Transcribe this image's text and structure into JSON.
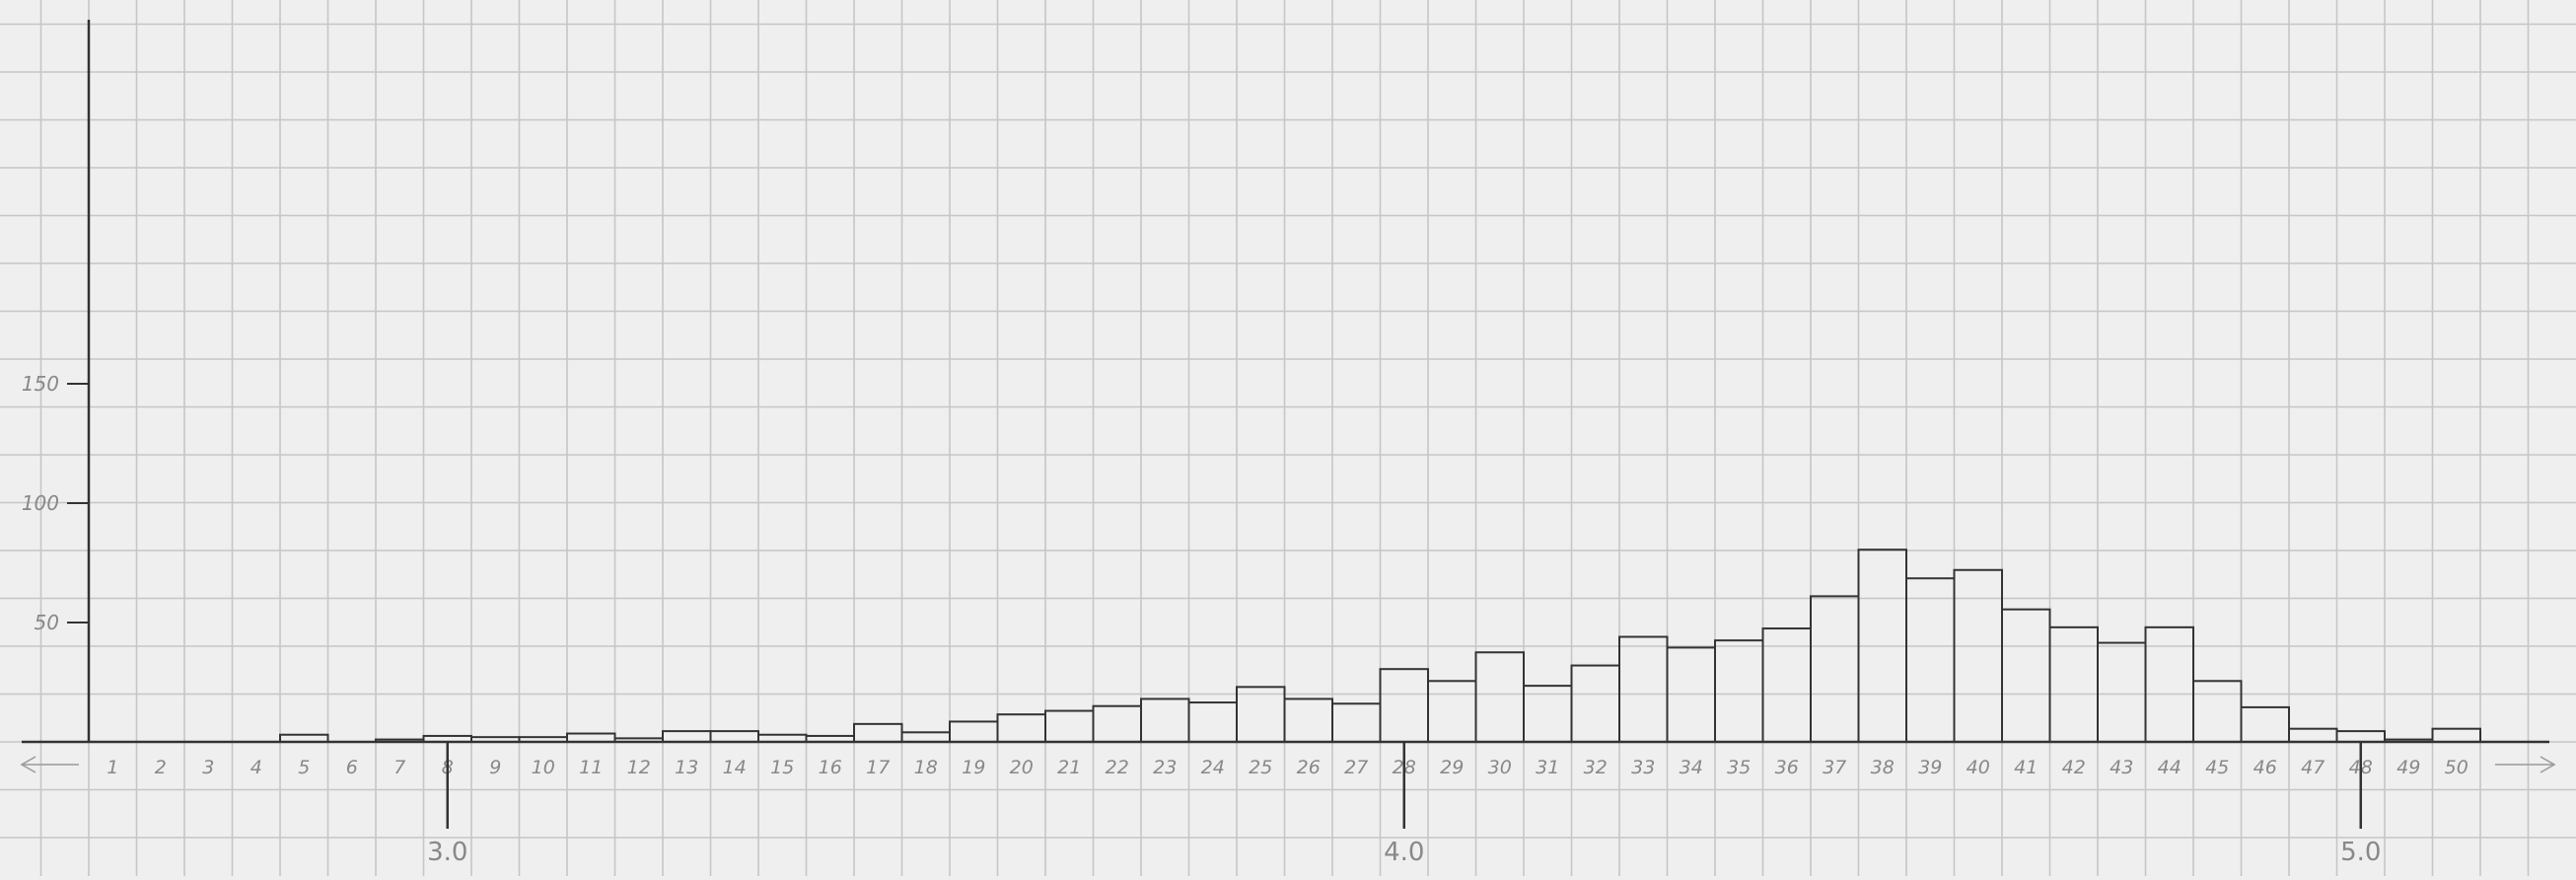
{
  "chart_data": {
    "type": "bar",
    "style": "step histogram, hand-drawn on graph paper",
    "grid": true,
    "xlim": [
      0,
      51
    ],
    "ylim": [
      0,
      150
    ],
    "categories": [
      "1",
      "2",
      "3",
      "4",
      "5",
      "6",
      "7",
      "8",
      "9",
      "10",
      "11",
      "12",
      "13",
      "14",
      "15",
      "16",
      "17",
      "18",
      "19",
      "20",
      "21",
      "22",
      "23",
      "24",
      "25",
      "26",
      "27",
      "28",
      "29",
      "30",
      "31",
      "32",
      "33",
      "34",
      "35",
      "36",
      "37",
      "38",
      "39",
      "40",
      "41",
      "42",
      "43",
      "44",
      "45",
      "46",
      "47",
      "48",
      "49",
      "50"
    ],
    "values": [
      0,
      0,
      0,
      0,
      3,
      0,
      1,
      2.5,
      2,
      2,
      3.5,
      1.5,
      4.5,
      4.5,
      3,
      2.5,
      7.5,
      4,
      8.5,
      11.5,
      13,
      15,
      18,
      16.5,
      23,
      18,
      16,
      30.5,
      25.5,
      37.5,
      23.5,
      32,
      44,
      39.5,
      42.5,
      47.5,
      61,
      80.5,
      68.5,
      72,
      55.5,
      48,
      41.5,
      48,
      25.5,
      14.5,
      5.5,
      4.5,
      1,
      5.5
    ],
    "y_ticks": [
      {
        "value": 50,
        "label": "50"
      },
      {
        "value": 100,
        "label": "100"
      },
      {
        "value": 150,
        "label": "150"
      }
    ],
    "secondary_ticks": [
      {
        "at": 7.5,
        "label": "3.0"
      },
      {
        "at": 27.5,
        "label": "4.0"
      },
      {
        "at": 47.5,
        "label": "5.0"
      }
    ],
    "colors": {
      "line": "#333333",
      "grid": "#c6c6c6",
      "paper": "#efefef",
      "label": "#888888"
    }
  }
}
